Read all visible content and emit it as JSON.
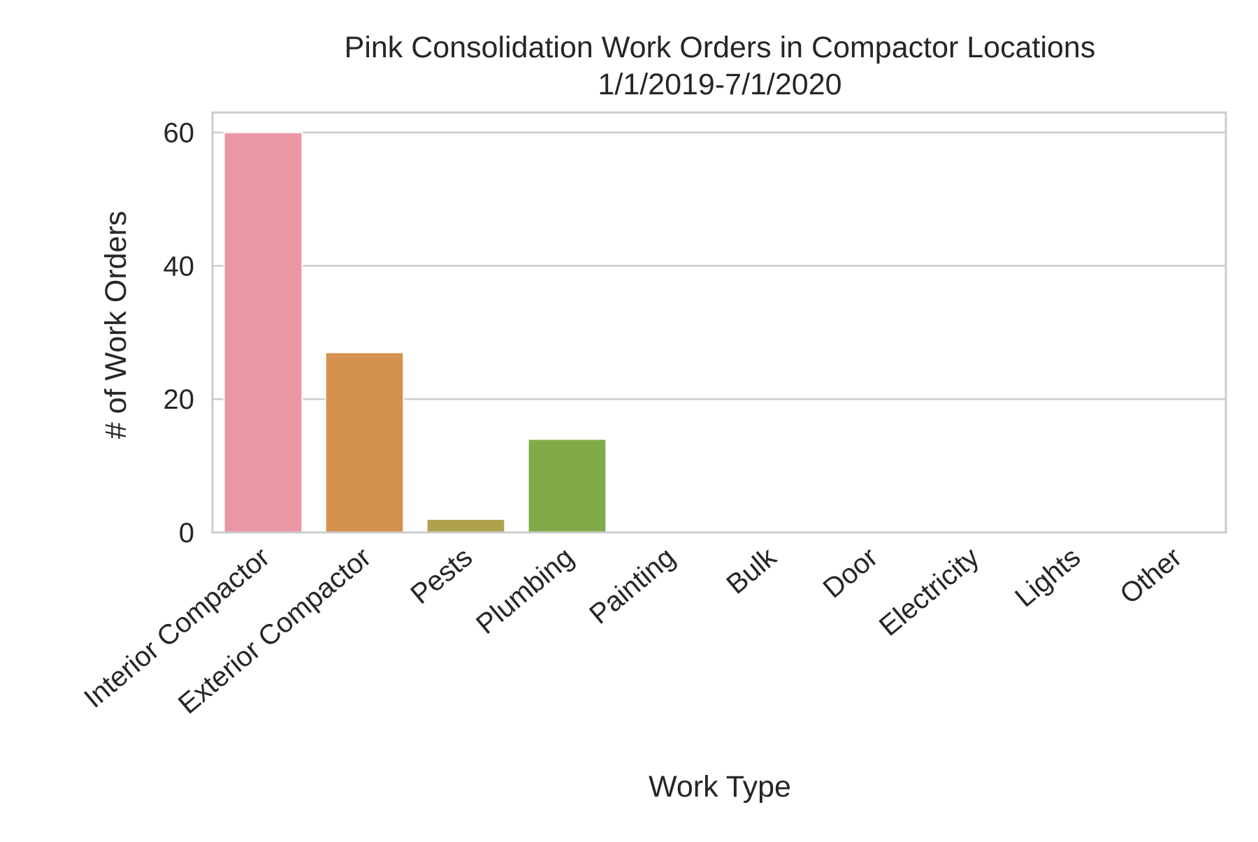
{
  "chart_data": {
    "type": "bar",
    "title": "Pink Consolidation Work Orders in Compactor Locations",
    "subtitle": "1/1/2019-7/1/2020",
    "xlabel": "Work Type",
    "ylabel": "# of Work Orders",
    "categories": [
      "Interior Compactor",
      "Exterior Compactor",
      "Pests",
      "Plumbing",
      "Painting",
      "Bulk",
      "Door",
      "Electricity",
      "Lights",
      "Other"
    ],
    "values": [
      60,
      27,
      2,
      14,
      0,
      0,
      0,
      0,
      0,
      0
    ],
    "colors": [
      "#EA96A3",
      "#D5924E",
      "#AFA24C",
      "#81AB49",
      "#5FAF5F",
      "#54AE99",
      "#57AAB8",
      "#6AA6D8",
      "#AE9CE8",
      "#E38BD7"
    ],
    "ylim": [
      0,
      63
    ],
    "yticks": [
      0,
      20,
      40,
      60
    ],
    "grid": true,
    "legend": "none"
  }
}
